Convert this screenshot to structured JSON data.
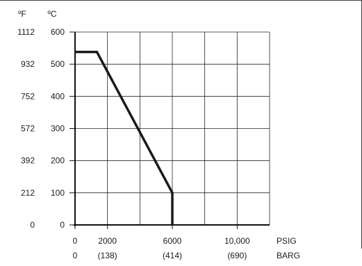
{
  "chart_data": {
    "type": "line",
    "x_axis": {
      "unit_primary": "PSIG",
      "unit_secondary": "BARG",
      "range_psig": [
        0,
        12000
      ],
      "ticks": [
        {
          "psig": 0,
          "primary": "0",
          "secondary": "0"
        },
        {
          "psig": 2000,
          "primary": "2000",
          "secondary": "(138)"
        },
        {
          "psig": 6000,
          "primary": "6000",
          "secondary": "(414)"
        },
        {
          "psig": 10000,
          "primary": "10,000",
          "secondary": "(690)"
        }
      ],
      "gridlines_psig": [
        2000,
        4000,
        6000,
        8000,
        10000,
        12000
      ]
    },
    "y_axis": {
      "unit_primary": "ºC",
      "unit_secondary": "ºF",
      "range_c": [
        0,
        600
      ],
      "ticks": [
        {
          "c": 0,
          "primary": "0",
          "secondary": "0"
        },
        {
          "c": 100,
          "primary": "100",
          "secondary": "212"
        },
        {
          "c": 200,
          "primary": "200",
          "secondary": "392"
        },
        {
          "c": 300,
          "primary": "300",
          "secondary": "572"
        },
        {
          "c": 400,
          "primary": "400",
          "secondary": "752"
        },
        {
          "c": 500,
          "primary": "500",
          "secondary": "932"
        },
        {
          "c": 600,
          "primary": "600",
          "secondary": "1112"
        }
      ]
    },
    "grid": true,
    "series": [
      {
        "points": [
          {
            "x": 0,
            "y": 538
          },
          {
            "x": 1350,
            "y": 538
          },
          {
            "x": 6000,
            "y": 100
          },
          {
            "x": 6000,
            "y": 0
          }
        ]
      }
    ],
    "color": "#1a1a1a"
  }
}
